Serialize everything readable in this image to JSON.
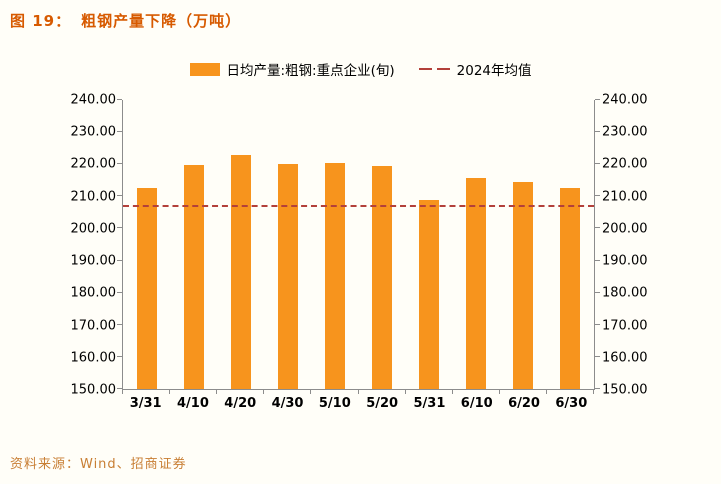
{
  "header": {
    "title_prefix": "图 19：",
    "title": "粗钢产量下降（万吨）"
  },
  "legend": {
    "items": [
      {
        "label": "日均产量:粗钢:重点企业(旬)",
        "type": "bar"
      },
      {
        "label": "2024年均值",
        "type": "dashed-line"
      }
    ]
  },
  "footer": {
    "source": "资料来源：Wind、招商证券"
  },
  "colors": {
    "bar": "#F7941D",
    "line": "#B3403A",
    "title": "#D75A00",
    "source": "#C87E33",
    "axis": "#8C8C8C",
    "background": "#FFFEF8"
  },
  "chart_data": {
    "type": "bar",
    "title": "粗钢产量下降（万吨）",
    "categories": [
      "3/31",
      "4/10",
      "4/20",
      "4/30",
      "5/10",
      "5/20",
      "5/31",
      "6/10",
      "6/20",
      "6/30"
    ],
    "series": [
      {
        "name": "日均产量:粗钢:重点企业(旬)",
        "type": "bar",
        "values": [
          212.6,
          219.7,
          223.0,
          220.0,
          220.4,
          219.6,
          209.0,
          215.6,
          214.6,
          212.7
        ]
      },
      {
        "name": "2024年均值",
        "type": "dashed-line",
        "value": 207.1
      }
    ],
    "xlabel": "",
    "ylabel": "",
    "ylim": [
      150,
      240
    ],
    "ytick_step": 10,
    "ytick_labels": [
      "150.00",
      "160.00",
      "170.00",
      "180.00",
      "190.00",
      "200.00",
      "210.00",
      "220.00",
      "230.00",
      "240.00"
    ],
    "grid": false,
    "legend_position": "top",
    "dual_y_axis": true
  }
}
